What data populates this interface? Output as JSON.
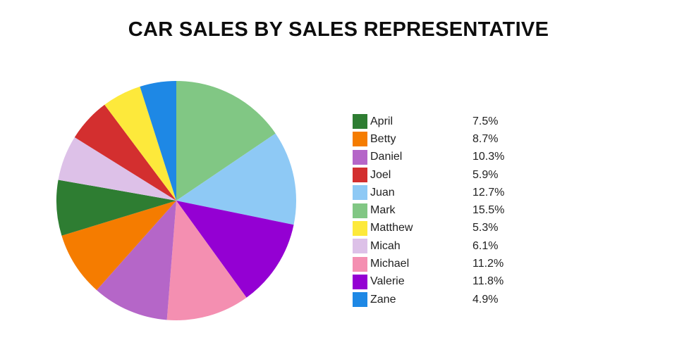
{
  "header": {
    "title": "CAR SALES BY SALES REPRESENTATIVE"
  },
  "chart_data": {
    "type": "pie",
    "title": "CAR SALES BY SALES REPRESENTATIVE",
    "unit": "%",
    "legend_position": "right",
    "legend_order": "alphabetical",
    "slice_order": "value_descending_clockwise_from_top",
    "start_angle_deg": 0,
    "direction": "clockwise",
    "items": [
      {
        "label": "April",
        "value": 7.5,
        "display": "7.5%",
        "color": "#2e7d32"
      },
      {
        "label": "Betty",
        "value": 8.7,
        "display": "8.7%",
        "color": "#f57c00"
      },
      {
        "label": "Daniel",
        "value": 10.3,
        "display": "10.3%",
        "color": "#b566c8"
      },
      {
        "label": "Joel",
        "value": 5.9,
        "display": "5.9%",
        "color": "#d32f2f"
      },
      {
        "label": "Juan",
        "value": 12.7,
        "display": "12.7%",
        "color": "#8ec9f5"
      },
      {
        "label": "Mark",
        "value": 15.5,
        "display": "15.5%",
        "color": "#81c784"
      },
      {
        "label": "Matthew",
        "value": 5.3,
        "display": "5.3%",
        "color": "#fde93b"
      },
      {
        "label": "Micah",
        "value": 6.1,
        "display": "6.1%",
        "color": "#ddc1e8"
      },
      {
        "label": "Michael",
        "value": 11.2,
        "display": "11.2%",
        "color": "#f48fb1"
      },
      {
        "label": "Valerie",
        "value": 11.8,
        "display": "11.8%",
        "color": "#9400d3"
      },
      {
        "label": "Zane",
        "value": 4.9,
        "display": "4.9%",
        "color": "#1e88e5"
      }
    ]
  }
}
